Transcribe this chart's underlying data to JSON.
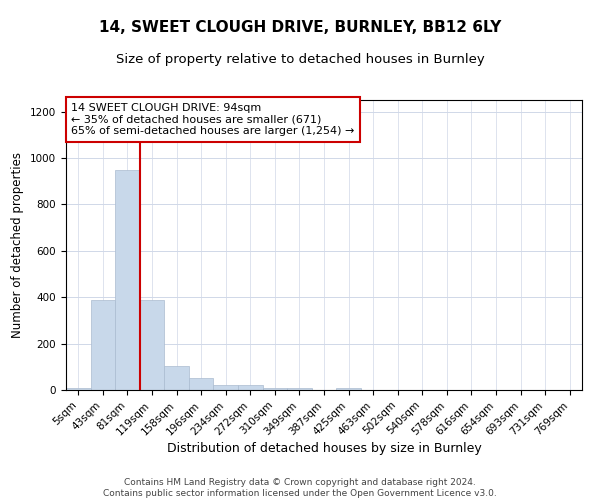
{
  "title1": "14, SWEET CLOUGH DRIVE, BURNLEY, BB12 6LY",
  "title2": "Size of property relative to detached houses in Burnley",
  "xlabel": "Distribution of detached houses by size in Burnley",
  "ylabel": "Number of detached properties",
  "categories": [
    "5sqm",
    "43sqm",
    "81sqm",
    "119sqm",
    "158sqm",
    "196sqm",
    "234sqm",
    "272sqm",
    "310sqm",
    "349sqm",
    "387sqm",
    "425sqm",
    "463sqm",
    "502sqm",
    "540sqm",
    "578sqm",
    "616sqm",
    "654sqm",
    "693sqm",
    "731sqm",
    "769sqm"
  ],
  "values": [
    10,
    390,
    950,
    390,
    105,
    50,
    22,
    22,
    10,
    10,
    0,
    10,
    0,
    0,
    0,
    0,
    0,
    0,
    0,
    0,
    0
  ],
  "bar_color": "#c8d8ea",
  "bar_edge_color": "#aabbd0",
  "red_line_x": 2.5,
  "red_line_color": "#cc0000",
  "annotation_text": "14 SWEET CLOUGH DRIVE: 94sqm\n← 35% of detached houses are smaller (671)\n65% of semi-detached houses are larger (1,254) →",
  "annotation_box_color": "#ffffff",
  "annotation_box_edge": "#cc0000",
  "ylim": [
    0,
    1250
  ],
  "yticks": [
    0,
    200,
    400,
    600,
    800,
    1000,
    1200
  ],
  "footnote": "Contains HM Land Registry data © Crown copyright and database right 2024.\nContains public sector information licensed under the Open Government Licence v3.0.",
  "bg_color": "#ffffff",
  "grid_color": "#d0d8e8",
  "title1_fontsize": 11,
  "title2_fontsize": 9.5,
  "xlabel_fontsize": 9,
  "ylabel_fontsize": 8.5,
  "tick_fontsize": 7.5,
  "ann_fontsize": 8,
  "footnote_fontsize": 6.5
}
